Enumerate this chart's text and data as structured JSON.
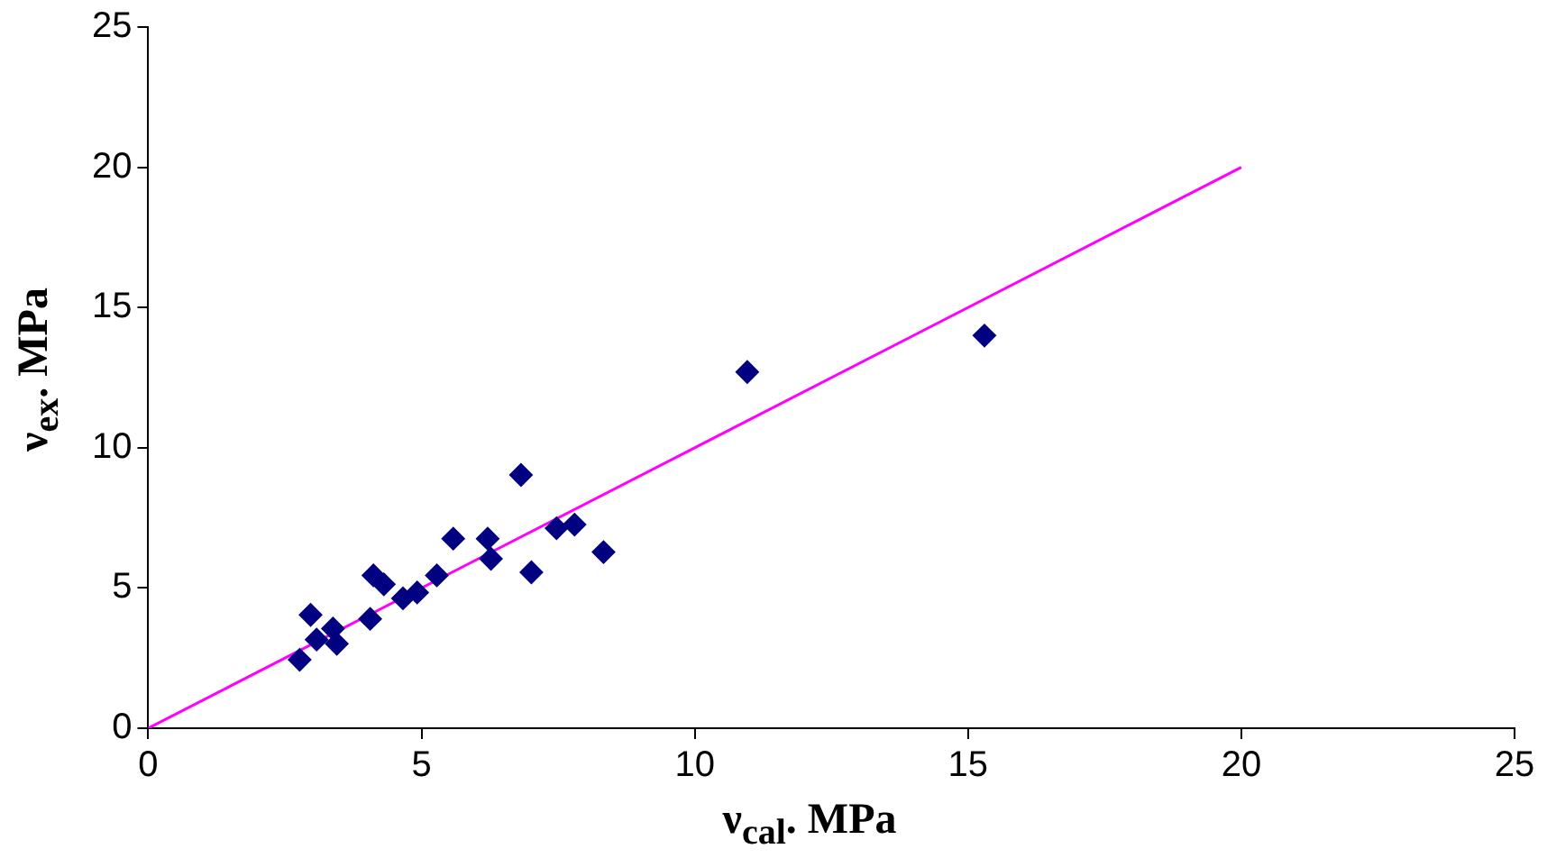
{
  "chart_data": {
    "type": "scatter",
    "xlabel": "ν$_{cal}$. MPa",
    "ylabel": "ν$_{ex}$. MPa",
    "xlim": [
      0,
      25
    ],
    "xticks": [
      0,
      5,
      10,
      15,
      20,
      25
    ],
    "ylim": [
      0,
      25
    ],
    "yticks": [
      0,
      5,
      10,
      15,
      20,
      25
    ],
    "grid": false,
    "legend": false,
    "marker": "diamond",
    "series": [
      {
        "type": "scatter",
        "color": "#000080",
        "x": [
          2.77,
          2.97,
          3.08,
          3.38,
          3.45,
          4.06,
          4.12,
          4.31,
          4.66,
          4.92,
          5.28,
          5.58,
          6.21,
          6.27,
          6.82,
          7.01,
          7.47,
          7.8,
          8.33,
          10.96,
          15.3
        ],
        "values": [
          2.44,
          4.04,
          3.16,
          3.55,
          3.01,
          3.9,
          5.45,
          5.13,
          4.63,
          4.84,
          5.45,
          6.76,
          6.76,
          6.04,
          9.03,
          5.56,
          7.13,
          7.26,
          6.28,
          12.7,
          14.0
        ]
      },
      {
        "type": "line",
        "color": "#ff00ff",
        "x": [
          0,
          20
        ],
        "values": [
          0,
          20
        ],
        "marker": "none",
        "line_style": "solid"
      }
    ]
  }
}
